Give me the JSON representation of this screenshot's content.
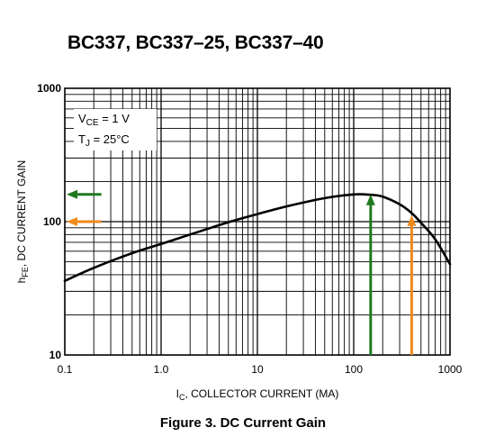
{
  "page": {
    "title": "BC337, BC337–25, BC337–40",
    "caption": "Figure 3. DC Current Gain"
  },
  "chart_data": {
    "type": "line",
    "x_scale": "log",
    "y_scale": "log",
    "xlim": [
      0.1,
      1000
    ],
    "ylim": [
      10,
      1000
    ],
    "grid": true,
    "x_ticks": [
      0.1,
      1,
      10,
      100,
      1000
    ],
    "x_tick_labels": [
      "0.1",
      "1.0",
      "10",
      "100",
      "1000"
    ],
    "y_ticks": [
      10,
      100,
      1000
    ],
    "y_tick_labels": [
      "10",
      "100",
      "1000"
    ],
    "xlabel": {
      "main": "I",
      "sub": "C",
      "rest": ", COLLECTOR CURRENT (MA)"
    },
    "ylabel": {
      "main": "h",
      "sub": "FE",
      "rest": ", DC CURRENT GAIN"
    },
    "annotation": {
      "line1": {
        "main": "V",
        "sub": "CE",
        "rest": " = 1 V"
      },
      "line2": {
        "main": "T",
        "sub": "J",
        "rest": " = 25°C"
      }
    },
    "series": [
      {
        "x": [
          0.1,
          0.2,
          0.5,
          1,
          2,
          5,
          10,
          20,
          50,
          100,
          150,
          200,
          300,
          400,
          500,
          700,
          1000
        ],
        "y": [
          36,
          45,
          58,
          68,
          80,
          99,
          114,
          130,
          150,
          160,
          159,
          154,
          135,
          116,
          98,
          74,
          48
        ]
      }
    ],
    "markers": [
      {
        "kind": "arrow-up",
        "x": 150,
        "y_from": 10,
        "y_to": 160,
        "color": "#1f7a1f"
      },
      {
        "kind": "arrow-up",
        "x": 400,
        "y_from": 10,
        "y_to": 112,
        "color": "#f08a1c"
      },
      {
        "kind": "arrow-left",
        "y": 160,
        "x_from": 0.24,
        "x_to": 0.1,
        "color": "#1f7a1f"
      },
      {
        "kind": "arrow-left",
        "y": 100,
        "x_from": 0.24,
        "x_to": 0.1,
        "color": "#f08a1c"
      }
    ]
  }
}
